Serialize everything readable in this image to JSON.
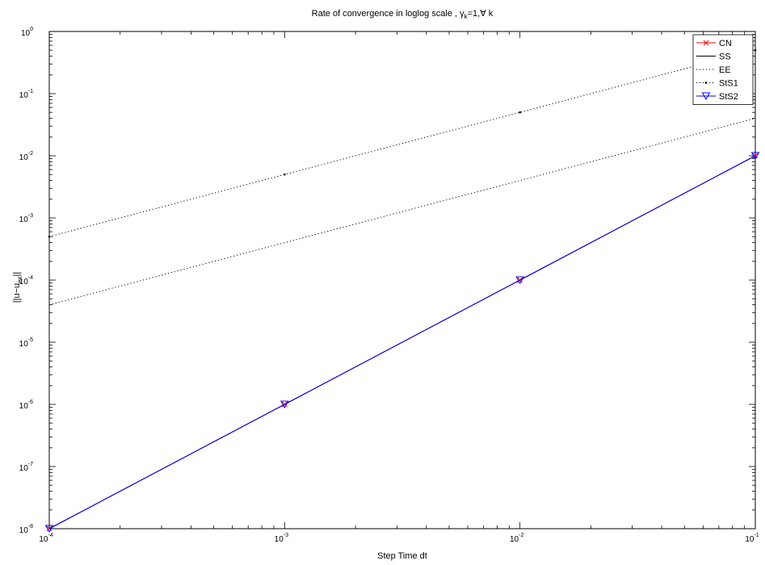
{
  "chart_data": {
    "type": "line",
    "title_main": "Rate of convergence in loglog scale , ",
    "title_gamma": "γ",
    "title_gamma_sub": "k",
    "title_rest": "=1,∀ k",
    "xlabel": "Step Time dt",
    "ylabel_main": "||u−u",
    "ylabel_sub": "ex",
    "ylabel_end": "||",
    "x_scale": "log",
    "y_scale": "log",
    "xlim": [
      0.0001,
      0.1
    ],
    "ylim": [
      1e-08,
      1
    ],
    "x_tick_base": "10",
    "x_tick_exps": [
      "-4",
      "-3",
      "-2",
      "-1"
    ],
    "y_tick_base": "10",
    "y_tick_exps": [
      "-8",
      "-7",
      "-6",
      "-5",
      "-4",
      "-3",
      "-2",
      "-1",
      "0"
    ],
    "grid": false,
    "legend_position": "top-right",
    "series": [
      {
        "name": "CN",
        "x": [
          0.0001,
          0.001,
          0.01,
          0.1
        ],
        "y": [
          1e-08,
          1e-06,
          0.0001,
          0.01
        ],
        "color": "#ff0000",
        "line": "solid",
        "marker": "x"
      },
      {
        "name": "SS",
        "x": [
          0.0001,
          0.001,
          0.01,
          0.1
        ],
        "y": [
          1e-08,
          1e-06,
          0.0001,
          0.01
        ],
        "color": "#000000",
        "line": "solid",
        "marker": "none"
      },
      {
        "name": "EE",
        "x": [
          0.0001,
          0.001,
          0.01,
          0.1
        ],
        "y": [
          4e-05,
          0.0004,
          0.004,
          0.04
        ],
        "color": "#000000",
        "line": "dotted",
        "marker": "none"
      },
      {
        "name": "StS1",
        "x": [
          0.0001,
          0.001,
          0.01,
          0.1
        ],
        "y": [
          0.0005,
          0.005,
          0.05,
          0.5
        ],
        "color": "#000000",
        "line": "dotted",
        "marker": "dot"
      },
      {
        "name": "StS2",
        "x": [
          0.0001,
          0.001,
          0.01,
          0.1
        ],
        "y": [
          1e-08,
          1e-06,
          0.0001,
          0.01
        ],
        "color": "#0000ff",
        "line": "solid",
        "marker": "triangle-down"
      }
    ]
  }
}
